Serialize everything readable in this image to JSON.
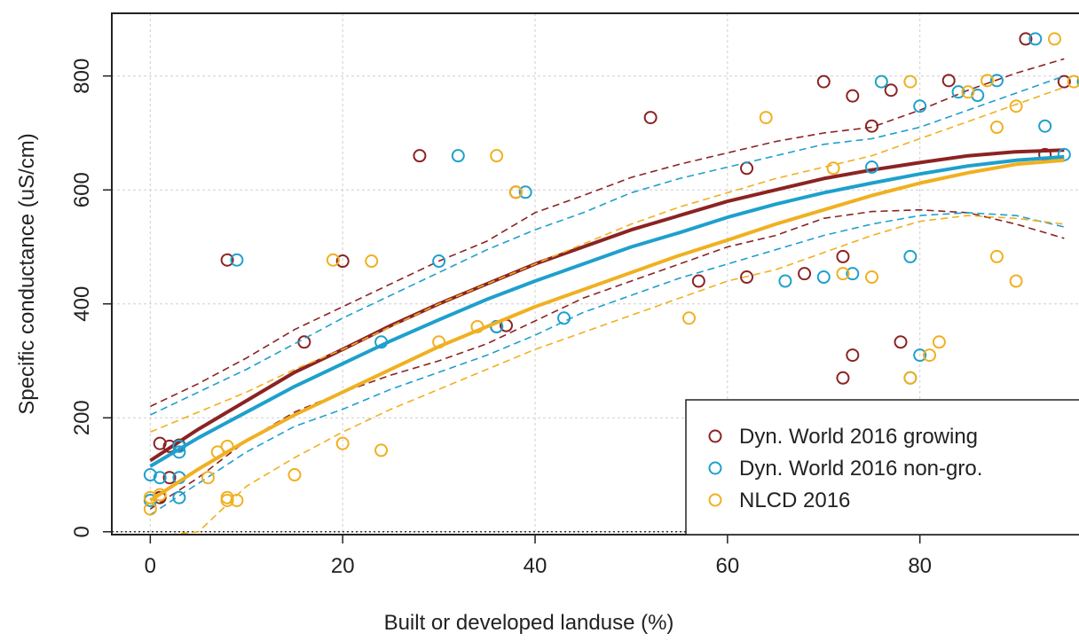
{
  "chart_data": {
    "type": "scatter",
    "title": "",
    "xlabel": "Built or developed landuse (%)",
    "ylabel": "Specific conductance (uS/cm)",
    "xlim": [
      -4,
      97
    ],
    "ylim": [
      -5,
      910
    ],
    "xticks": [
      0,
      20,
      40,
      60,
      80
    ],
    "yticks": [
      0,
      200,
      400,
      600,
      800
    ],
    "grid": true,
    "legend_position": "bottom-right",
    "series": [
      {
        "name": "Dyn. World 2016 growing",
        "color": "#8b2323",
        "points": [
          [
            1,
            155
          ],
          [
            2,
            150
          ],
          [
            3,
            152
          ],
          [
            2,
            95
          ],
          [
            1,
            60
          ],
          [
            8,
            477
          ],
          [
            16,
            333
          ],
          [
            20,
            475
          ],
          [
            28,
            660
          ],
          [
            36,
            360
          ],
          [
            38,
            596
          ],
          [
            37,
            362
          ],
          [
            52,
            727
          ],
          [
            57,
            440
          ],
          [
            62,
            638
          ],
          [
            62,
            447
          ],
          [
            68,
            453
          ],
          [
            70,
            790
          ],
          [
            72,
            483
          ],
          [
            72,
            270
          ],
          [
            73,
            310
          ],
          [
            73,
            765
          ],
          [
            75,
            712
          ],
          [
            77,
            775
          ],
          [
            78,
            333
          ],
          [
            83,
            792
          ],
          [
            91,
            865
          ],
          [
            93,
            662
          ],
          [
            95,
            790
          ]
        ],
        "fit": [
          [
            0,
            125
          ],
          [
            5,
            180
          ],
          [
            10,
            230
          ],
          [
            15,
            280
          ],
          [
            20,
            320
          ],
          [
            25,
            362
          ],
          [
            30,
            400
          ],
          [
            35,
            435
          ],
          [
            40,
            470
          ],
          [
            45,
            500
          ],
          [
            50,
            530
          ],
          [
            55,
            555
          ],
          [
            60,
            580
          ],
          [
            65,
            600
          ],
          [
            70,
            620
          ],
          [
            75,
            635
          ],
          [
            80,
            648
          ],
          [
            85,
            660
          ],
          [
            90,
            667
          ],
          [
            95,
            670
          ]
        ],
        "upper": [
          [
            0,
            220
          ],
          [
            5,
            260
          ],
          [
            10,
            305
          ],
          [
            15,
            355
          ],
          [
            20,
            395
          ],
          [
            25,
            435
          ],
          [
            30,
            475
          ],
          [
            35,
            510
          ],
          [
            40,
            560
          ],
          [
            45,
            590
          ],
          [
            50,
            622
          ],
          [
            55,
            645
          ],
          [
            60,
            665
          ],
          [
            65,
            685
          ],
          [
            70,
            700
          ],
          [
            75,
            710
          ],
          [
            80,
            740
          ],
          [
            85,
            775
          ],
          [
            90,
            805
          ],
          [
            95,
            830
          ]
        ],
        "lower": [
          [
            0,
            40
          ],
          [
            5,
            95
          ],
          [
            10,
            160
          ],
          [
            15,
            210
          ],
          [
            20,
            245
          ],
          [
            25,
            275
          ],
          [
            30,
            300
          ],
          [
            35,
            330
          ],
          [
            40,
            370
          ],
          [
            45,
            410
          ],
          [
            50,
            440
          ],
          [
            55,
            470
          ],
          [
            60,
            500
          ],
          [
            65,
            520
          ],
          [
            70,
            550
          ],
          [
            75,
            562
          ],
          [
            80,
            565
          ],
          [
            85,
            560
          ],
          [
            90,
            540
          ],
          [
            95,
            515
          ]
        ]
      },
      {
        "name": "Dyn. World 2016 non-gro.",
        "color": "#1ea0cc",
        "points": [
          [
            0,
            100
          ],
          [
            0,
            55
          ],
          [
            1,
            95
          ],
          [
            3,
            150
          ],
          [
            3,
            140
          ],
          [
            3,
            95
          ],
          [
            3,
            60
          ],
          [
            9,
            477
          ],
          [
            24,
            333
          ],
          [
            30,
            475
          ],
          [
            32,
            660
          ],
          [
            36,
            360
          ],
          [
            39,
            596
          ],
          [
            43,
            375
          ],
          [
            66,
            440
          ],
          [
            70,
            447
          ],
          [
            73,
            453
          ],
          [
            75,
            640
          ],
          [
            76,
            790
          ],
          [
            79,
            483
          ],
          [
            79,
            270
          ],
          [
            80,
            310
          ],
          [
            80,
            747
          ],
          [
            84,
            772
          ],
          [
            86,
            766
          ],
          [
            88,
            792
          ],
          [
            92,
            865
          ],
          [
            93,
            712
          ],
          [
            95,
            662
          ],
          [
            97,
            790
          ]
        ],
        "fit": [
          [
            0,
            115
          ],
          [
            5,
            165
          ],
          [
            10,
            210
          ],
          [
            15,
            255
          ],
          [
            20,
            295
          ],
          [
            25,
            335
          ],
          [
            30,
            372
          ],
          [
            35,
            408
          ],
          [
            40,
            440
          ],
          [
            45,
            470
          ],
          [
            50,
            500
          ],
          [
            55,
            525
          ],
          [
            60,
            552
          ],
          [
            65,
            575
          ],
          [
            70,
            595
          ],
          [
            75,
            612
          ],
          [
            80,
            628
          ],
          [
            85,
            642
          ],
          [
            90,
            652
          ],
          [
            95,
            658
          ]
        ],
        "upper": [
          [
            0,
            205
          ],
          [
            5,
            245
          ],
          [
            10,
            285
          ],
          [
            15,
            330
          ],
          [
            20,
            375
          ],
          [
            25,
            415
          ],
          [
            30,
            455
          ],
          [
            35,
            495
          ],
          [
            40,
            530
          ],
          [
            45,
            560
          ],
          [
            50,
            595
          ],
          [
            55,
            620
          ],
          [
            60,
            640
          ],
          [
            65,
            660
          ],
          [
            70,
            680
          ],
          [
            75,
            690
          ],
          [
            80,
            710
          ],
          [
            85,
            740
          ],
          [
            90,
            770
          ],
          [
            95,
            800
          ]
        ],
        "lower": [
          [
            0,
            30
          ],
          [
            5,
            85
          ],
          [
            10,
            140
          ],
          [
            15,
            185
          ],
          [
            20,
            215
          ],
          [
            25,
            250
          ],
          [
            30,
            280
          ],
          [
            35,
            310
          ],
          [
            40,
            345
          ],
          [
            45,
            385
          ],
          [
            50,
            415
          ],
          [
            55,
            445
          ],
          [
            60,
            470
          ],
          [
            65,
            495
          ],
          [
            70,
            520
          ],
          [
            75,
            540
          ],
          [
            80,
            555
          ],
          [
            85,
            560
          ],
          [
            90,
            555
          ],
          [
            95,
            535
          ]
        ]
      },
      {
        "name": "NLCD 2016",
        "color": "#f0b020",
        "points": [
          [
            0,
            60
          ],
          [
            0,
            40
          ],
          [
            1,
            65
          ],
          [
            6,
            95
          ],
          [
            7,
            140
          ],
          [
            8,
            150
          ],
          [
            8,
            60
          ],
          [
            8,
            55
          ],
          [
            9,
            55
          ],
          [
            15,
            100
          ],
          [
            19,
            477
          ],
          [
            20,
            155
          ],
          [
            23,
            475
          ],
          [
            24,
            143
          ],
          [
            30,
            333
          ],
          [
            34,
            360
          ],
          [
            36,
            660
          ],
          [
            38,
            596
          ],
          [
            56,
            375
          ],
          [
            64,
            727
          ],
          [
            71,
            638
          ],
          [
            72,
            453
          ],
          [
            75,
            447
          ],
          [
            79,
            790
          ],
          [
            79,
            270
          ],
          [
            81,
            310
          ],
          [
            82,
            333
          ],
          [
            85,
            772
          ],
          [
            87,
            792
          ],
          [
            88,
            483
          ],
          [
            88,
            710
          ],
          [
            90,
            440
          ],
          [
            90,
            747
          ],
          [
            94,
            865
          ],
          [
            96,
            790
          ]
        ],
        "fit": [
          [
            0,
            55
          ],
          [
            5,
            110
          ],
          [
            10,
            160
          ],
          [
            15,
            205
          ],
          [
            20,
            245
          ],
          [
            25,
            285
          ],
          [
            30,
            325
          ],
          [
            35,
            360
          ],
          [
            40,
            395
          ],
          [
            45,
            425
          ],
          [
            50,
            455
          ],
          [
            55,
            485
          ],
          [
            60,
            512
          ],
          [
            65,
            540
          ],
          [
            70,
            565
          ],
          [
            75,
            590
          ],
          [
            80,
            612
          ],
          [
            85,
            630
          ],
          [
            90,
            645
          ],
          [
            95,
            652
          ]
        ],
        "upper": [
          [
            0,
            175
          ],
          [
            5,
            210
          ],
          [
            10,
            245
          ],
          [
            15,
            285
          ],
          [
            20,
            320
          ],
          [
            25,
            360
          ],
          [
            30,
            400
          ],
          [
            35,
            435
          ],
          [
            40,
            470
          ],
          [
            45,
            505
          ],
          [
            50,
            540
          ],
          [
            55,
            570
          ],
          [
            60,
            595
          ],
          [
            65,
            620
          ],
          [
            70,
            640
          ],
          [
            75,
            660
          ],
          [
            80,
            690
          ],
          [
            85,
            720
          ],
          [
            90,
            750
          ],
          [
            95,
            780
          ]
        ],
        "lower": [
          [
            2,
            -5
          ],
          [
            5,
            0
          ],
          [
            10,
            80
          ],
          [
            15,
            130
          ],
          [
            20,
            175
          ],
          [
            25,
            215
          ],
          [
            30,
            250
          ],
          [
            35,
            285
          ],
          [
            40,
            320
          ],
          [
            45,
            350
          ],
          [
            50,
            380
          ],
          [
            55,
            410
          ],
          [
            60,
            440
          ],
          [
            65,
            460
          ],
          [
            70,
            490
          ],
          [
            75,
            520
          ],
          [
            80,
            545
          ],
          [
            85,
            555
          ],
          [
            90,
            550
          ],
          [
            95,
            540
          ]
        ]
      }
    ]
  }
}
